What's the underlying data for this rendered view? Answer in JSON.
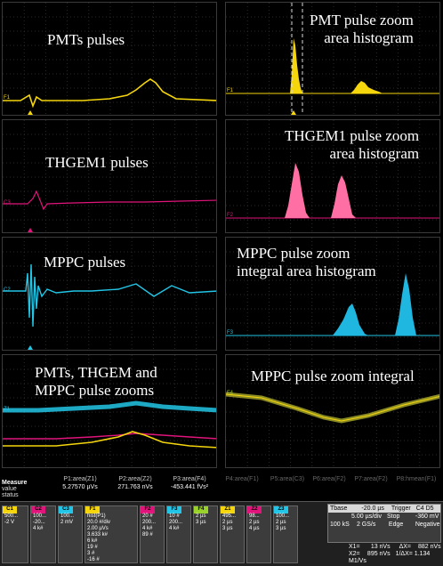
{
  "panels": {
    "pmt": {
      "label": "PMTs pulses",
      "marker": "F1"
    },
    "pmt_zoom": {
      "label": "PMT  pulse zoom\narea histogram",
      "marker": "F1"
    },
    "thgem": {
      "label": "THGEM1 pulses",
      "marker": "C3"
    },
    "thgem_zoom": {
      "label": "THGEM1 pulse zoom\narea histogram",
      "marker": "F2"
    },
    "mppc": {
      "label": "MPPC pulses",
      "marker": "C2"
    },
    "mppc_zoom": {
      "label": "MPPC pulse zoom\nintegral area histogram",
      "marker": "F3"
    },
    "all_zoom": {
      "label": "PMTs, THGEM and\nMPPC pulse zooms",
      "marker": "Z1"
    },
    "mppc_int": {
      "label": "MPPC pulse zoom integral",
      "marker": "F4"
    }
  },
  "measure": {
    "title": "Measure",
    "row1": "value",
    "row2": "status",
    "params": [
      {
        "name": "P1:area(Z1)",
        "value": "5.27570 µVs"
      },
      {
        "name": "P2:area(Z2)",
        "value": "271.763 nVs"
      },
      {
        "name": "P3:area(F4)",
        "value": "-453.441 fVs²"
      },
      {
        "name": "P4:area(F1)",
        "value": ""
      },
      {
        "name": "P5:area(C3)",
        "value": ""
      },
      {
        "name": "P6:area(F2)",
        "value": ""
      },
      {
        "name": "P7:area(F2)",
        "value": ""
      },
      {
        "name": "P8:hmean(F1)",
        "value": ""
      }
    ]
  },
  "channels": [
    {
      "tag": "C1",
      "color": "#f5d60c",
      "lines": [
        "500...",
        "-2 V"
      ]
    },
    {
      "tag": "C2",
      "color": "#e0147a",
      "lines": [
        "100...",
        "-20...",
        "4 k#"
      ]
    },
    {
      "tag": "C3",
      "color": "#22c5e6",
      "lines": [
        "100...",
        "2 mV"
      ]
    },
    {
      "tag": "F1",
      "color": "#f5d60c",
      "lines": [
        "hist(P1)",
        "20.0 #/div",
        "2.00 µVs",
        "3.633 k#",
        "6 k#",
        "19 #",
        "3 #",
        "-16 #"
      ]
    },
    {
      "tag": "F2",
      "color": "#e0147a",
      "lines": [
        "20 #",
        "200...",
        "4 k#",
        "89 #"
      ]
    },
    {
      "tag": "F3",
      "color": "#22c5e6",
      "lines": [
        "10 #",
        "200...",
        "4 k#"
      ]
    },
    {
      "tag": "F4",
      "color": "#9ad22c",
      "lines": [
        "2 µs",
        "3 µs"
      ]
    },
    {
      "tag": "Z1",
      "color": "#f5d60c",
      "lines": [
        "495...",
        "2 µs",
        "3 µs"
      ]
    },
    {
      "tag": "Z2",
      "color": "#e0147a",
      "lines": [
        "98...",
        "2 µs",
        "4 µs"
      ]
    },
    {
      "tag": "Z3",
      "color": "#22c5e6",
      "lines": [
        "100...",
        "2 µs",
        "3 µs"
      ]
    }
  ],
  "timebase": {
    "title": "Tbase",
    "offset": "-20.0 µs",
    "trigger_title": "Trigger",
    "trigger_channels": "C4 D5",
    "row1_left": "5.00 µs/div",
    "row1_mid": "Stop",
    "row1_right": "-360 mV",
    "row2_left": "100 kS",
    "row2_mid": "2 GS/s",
    "row2_right": "Edge",
    "row2_far": "Negative"
  },
  "cursors": {
    "x1": "X1=",
    "x1_val": "13 nVs",
    "dx": "ΔX=",
    "dx_val": "882 nVs",
    "x2": "X2=",
    "x2_val": "895 nVs",
    "inv_dx": "1/ΔX=",
    "inv_dx_val": "1.134 M1/Vs"
  }
}
